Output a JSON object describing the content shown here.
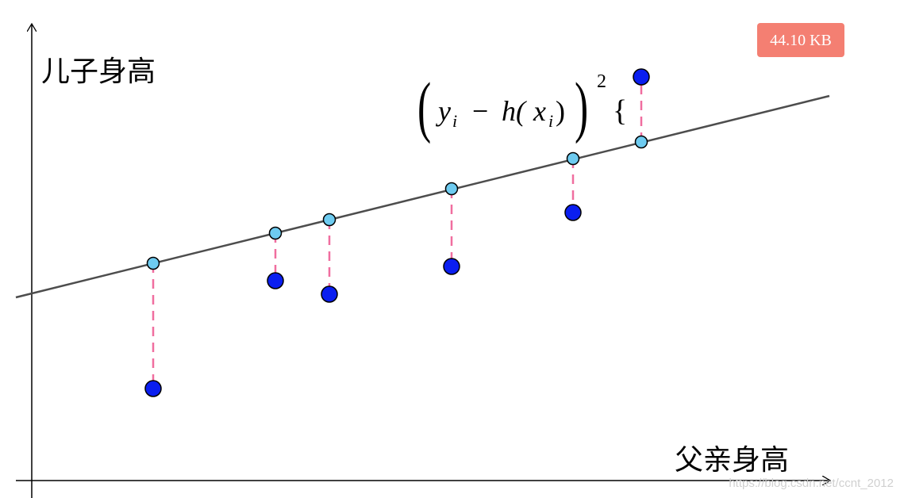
{
  "y_axis_label": "儿子身高",
  "x_axis_label": "父亲身高",
  "formula": {
    "open_paren": "(",
    "y": "y",
    "y_sub": "i",
    "minus": "−",
    "h": "h(",
    "x": "x",
    "x_sub": "i",
    "inner_close": ")",
    "close_paren": ")",
    "exponent": "2",
    "brace": "{"
  },
  "badge": "44.10 KB",
  "watermark": "https://blog.csdn.net/ccnt_2012"
}
